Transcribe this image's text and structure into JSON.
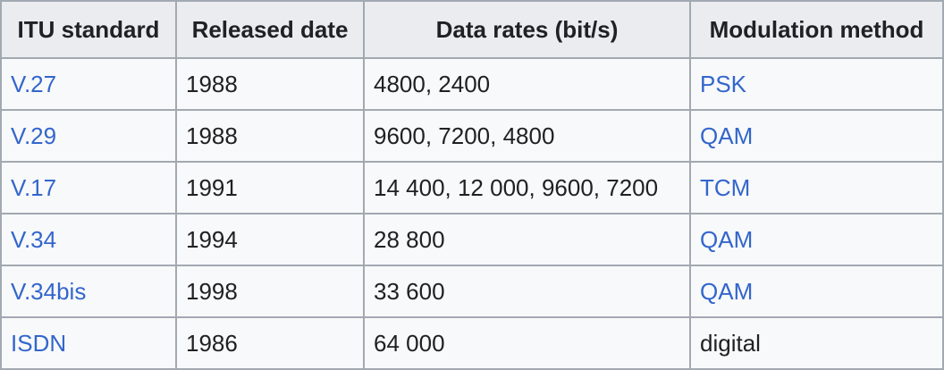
{
  "table": {
    "header": [
      "ITU standard",
      "Released date",
      "Data rates (bit/s)",
      "Modulation method"
    ],
    "rows": [
      [
        "V.27",
        "1988",
        "4800, 2400",
        "PSK"
      ],
      [
        "V.29",
        "1988",
        "9600, 7200, 4800",
        "QAM"
      ],
      [
        "V.17",
        "1991",
        "14 400, 12 000, 9600, 7200",
        "TCM"
      ],
      [
        "V.34",
        "1994",
        "28 800",
        "QAM"
      ],
      [
        "V.34bis",
        "1998",
        "33 600",
        "QAM"
      ],
      [
        "ISDN",
        "1986",
        "64 000",
        "digital"
      ]
    ]
  }
}
